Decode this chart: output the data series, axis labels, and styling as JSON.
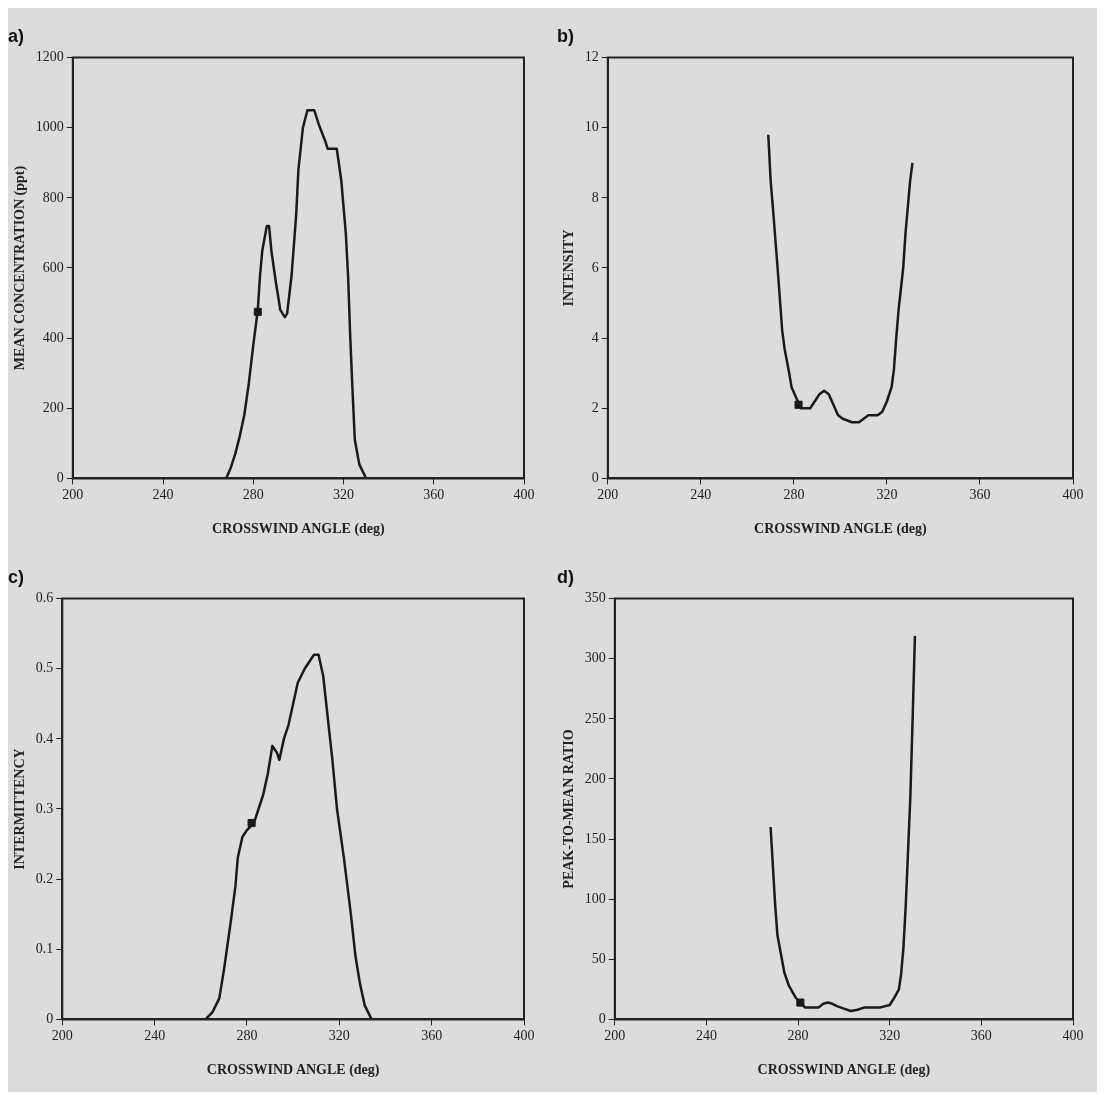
{
  "chart_data": [
    {
      "type": "line",
      "title": "a)",
      "xlabel": "CROSSWIND ANGLE (deg)",
      "ylabel": "MEAN CONCENTRATION (ppt)",
      "xlim": [
        200,
        400
      ],
      "xticks": [
        200,
        240,
        280,
        320,
        360,
        400
      ],
      "ylim": [
        0,
        1200
      ],
      "yticks": [
        0,
        200,
        400,
        600,
        800,
        1000,
        1200
      ],
      "grid": false,
      "legend": false,
      "series": [
        {
          "type": "line",
          "color": "#1a1a1a",
          "marker": "none",
          "line_style": "solid",
          "x": [
            268,
            270,
            272,
            274,
            276,
            278,
            280,
            282,
            283,
            284,
            286,
            287,
            288,
            290,
            292,
            294,
            295,
            297,
            299,
            300,
            302,
            304,
            307,
            309,
            312,
            313,
            317,
            319,
            321,
            322,
            323,
            324,
            325,
            327,
            330
          ],
          "values": [
            0,
            30,
            70,
            120,
            180,
            270,
            380,
            480,
            580,
            650,
            720,
            720,
            650,
            560,
            480,
            460,
            470,
            580,
            750,
            880,
            1000,
            1050,
            1050,
            1010,
            960,
            940,
            940,
            850,
            700,
            580,
            400,
            250,
            110,
            40,
            0
          ]
        },
        {
          "type": "scatter",
          "color": "#1a1a1a",
          "marker": "square",
          "x": [
            282
          ],
          "values": [
            475
          ]
        }
      ]
    },
    {
      "type": "line",
      "title": "b)",
      "xlabel": "CROSSWIND ANGLE (deg)",
      "ylabel": "INTENSITY",
      "xlim": [
        200,
        400
      ],
      "xticks": [
        200,
        240,
        280,
        320,
        360,
        400
      ],
      "ylim": [
        0,
        12
      ],
      "yticks": [
        0,
        2,
        4,
        6,
        8,
        10,
        12
      ],
      "grid": false,
      "legend": false,
      "series": [
        {
          "type": "line",
          "color": "#1a1a1a",
          "marker": "none",
          "line_style": "solid",
          "x": [
            269,
            270,
            271,
            273,
            275,
            276,
            278,
            279,
            281,
            283,
            285,
            287,
            289,
            291,
            293,
            295,
            297,
            299,
            301,
            303,
            305,
            308,
            310,
            312,
            316,
            318,
            320,
            322,
            323,
            324,
            325,
            327,
            328,
            330,
            331
          ],
          "values": [
            9.8,
            8.5,
            7.7,
            6,
            4.2,
            3.7,
            3,
            2.6,
            2.3,
            2,
            2,
            2,
            2.2,
            2.4,
            2.5,
            2.4,
            2.1,
            1.8,
            1.7,
            1.65,
            1.6,
            1.6,
            1.7,
            1.8,
            1.8,
            1.9,
            2.2,
            2.6,
            3.1,
            4,
            4.8,
            6,
            7,
            8.5,
            9
          ]
        },
        {
          "type": "scatter",
          "color": "#1a1a1a",
          "marker": "square",
          "x": [
            282
          ],
          "values": [
            2.1
          ]
        }
      ]
    },
    {
      "type": "line",
      "title": "c)",
      "xlabel": "CROSSWIND ANGLE (deg)",
      "ylabel": "INTERMITTENCY",
      "xlim": [
        200,
        400
      ],
      "xticks": [
        200,
        240,
        280,
        320,
        360,
        400
      ],
      "ylim": [
        0,
        0.6
      ],
      "yticks": [
        0,
        0.1,
        0.2,
        0.3,
        0.4,
        0.5,
        0.6
      ],
      "grid": false,
      "legend": false,
      "series": [
        {
          "type": "line",
          "color": "#1a1a1a",
          "marker": "none",
          "line_style": "solid",
          "x": [
            262,
            265,
            268,
            270,
            273,
            275,
            276,
            278,
            280,
            283,
            285,
            287,
            289,
            291,
            293,
            294,
            296,
            298,
            300,
            302,
            305,
            307,
            309,
            311,
            313,
            315,
            317,
            319,
            322,
            325,
            327,
            329,
            331,
            334
          ],
          "values": [
            0,
            0.01,
            0.03,
            0.07,
            0.14,
            0.19,
            0.23,
            0.26,
            0.27,
            0.28,
            0.3,
            0.32,
            0.35,
            0.39,
            0.38,
            0.37,
            0.4,
            0.42,
            0.45,
            0.48,
            0.5,
            0.51,
            0.52,
            0.52,
            0.49,
            0.43,
            0.37,
            0.3,
            0.23,
            0.15,
            0.09,
            0.05,
            0.02,
            0
          ]
        },
        {
          "type": "scatter",
          "color": "#1a1a1a",
          "marker": "square",
          "x": [
            282
          ],
          "values": [
            0.28
          ]
        }
      ]
    },
    {
      "type": "line",
      "title": "d)",
      "xlabel": "CROSSWIND ANGLE (deg)",
      "ylabel": "PEAK-TO-MEAN RATIO",
      "xlim": [
        200,
        400
      ],
      "xticks": [
        200,
        240,
        280,
        320,
        360,
        400
      ],
      "ylim": [
        0,
        350
      ],
      "yticks": [
        0,
        50,
        100,
        150,
        200,
        250,
        300,
        350
      ],
      "grid": false,
      "legend": false,
      "series": [
        {
          "type": "line",
          "color": "#1a1a1a",
          "marker": "none",
          "line_style": "solid",
          "x": [
            268,
            270,
            271,
            274,
            276,
            279,
            281,
            283,
            286,
            289,
            291,
            293,
            295,
            297,
            300,
            303,
            306,
            309,
            312,
            316,
            320,
            322,
            324,
            325,
            326,
            327,
            328,
            329,
            330,
            331
          ],
          "values": [
            160,
            95,
            70,
            39,
            28,
            18,
            14,
            10,
            10,
            10,
            13,
            14,
            13,
            11,
            9,
            7,
            8,
            10,
            10,
            10,
            12,
            18,
            25,
            38,
            60,
            95,
            140,
            185,
            250,
            319
          ]
        },
        {
          "type": "scatter",
          "color": "#1a1a1a",
          "marker": "square",
          "x": [
            281
          ],
          "values": [
            14
          ]
        }
      ]
    }
  ]
}
